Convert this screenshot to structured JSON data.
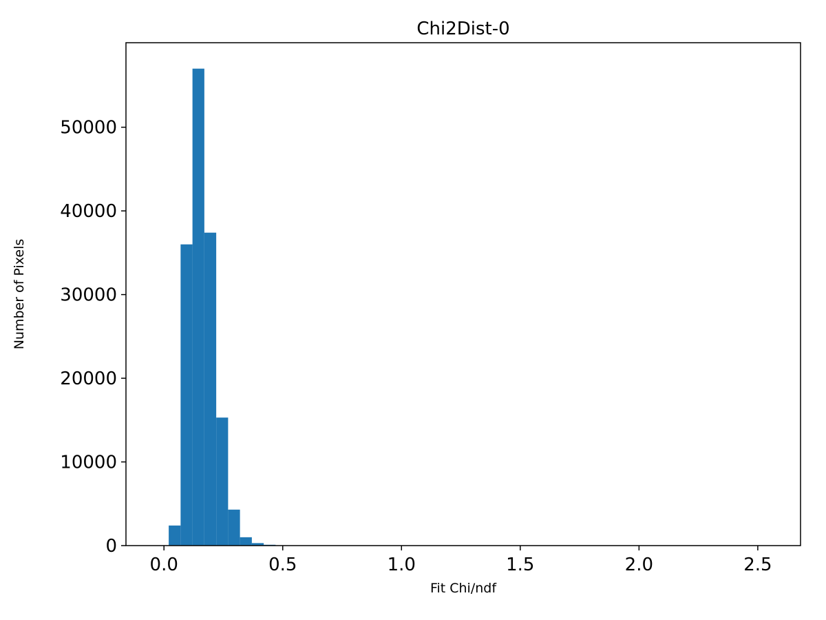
{
  "chart_data": {
    "type": "bar",
    "subtype": "histogram",
    "title": "Chi2Dist-0",
    "xlabel": "Fit Chi/ndf",
    "ylabel": "Number of Pixels",
    "bar_color": "#1f77b4",
    "bin_start": 0.02,
    "bin_width": 0.05,
    "counts": [
      2400,
      36000,
      57000,
      37400,
      15300,
      4300,
      1000,
      300,
      100
    ],
    "xlim": [
      -0.16,
      2.68
    ],
    "ylim": [
      0,
      60100
    ],
    "xticks": [
      0.0,
      0.5,
      1.0,
      1.5,
      2.0,
      2.5
    ],
    "xtick_labels": [
      "0.0",
      "0.5",
      "1.0",
      "1.5",
      "2.0",
      "2.5"
    ],
    "yticks": [
      0,
      10000,
      20000,
      30000,
      40000,
      50000
    ],
    "ytick_labels": [
      "0",
      "10000",
      "20000",
      "30000",
      "40000",
      "50000"
    ],
    "grid": false,
    "legend": "none"
  }
}
